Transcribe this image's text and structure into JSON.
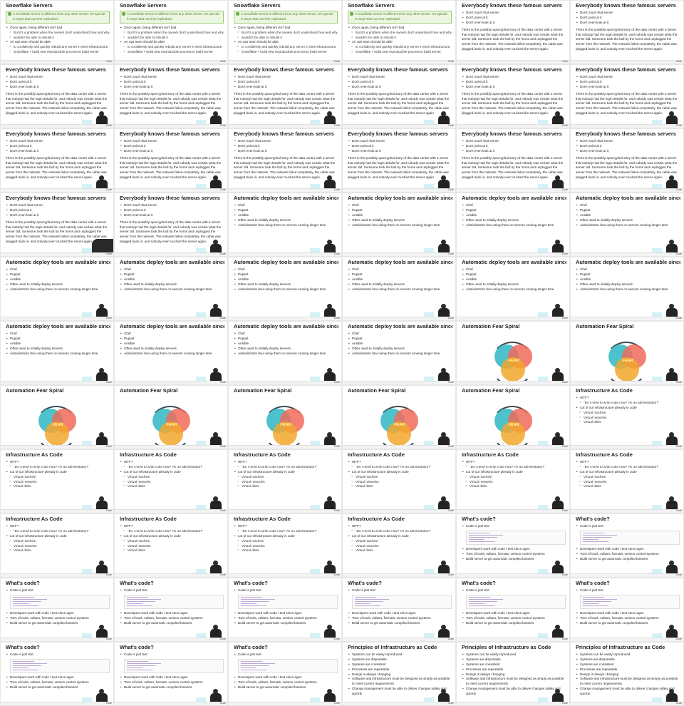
{
  "slides": {
    "snowflake": {
      "title": "Snowflake Servers",
      "note": "A snowflake server is different from any other server. It's special in ways that can't be replicated.",
      "bullets": [
        "Once again, being different isn't bad",
        "But it's a problem when the owners don't understand how and why",
        "wouldn't be able to rebuild it",
        "An ops team should be able",
        "to confidently and quickly rebuild any server in their infrastructure.",
        "Snowflake + build new reproducible process to build server"
      ]
    },
    "famous": {
      "title": "Everybody knows these famous servers",
      "bullets": [
        "Don't touch that server",
        "Don't point at it",
        "Don't even look at it"
      ],
      "para": "There is the possibly apocryphal story of the data center with a server that nobody had the login details for, and nobody was certain what the server did. Someone took the bull by the horns and unplugged the server from the network. The network failed completely, the cable was plugged back in, and nobody ever touched the server again."
    },
    "deploy": {
      "title": "Automatic deploy tools are available since ages",
      "bullets": [
        "Chef",
        "Puppet",
        "Ansible",
        "Often used to initially deploy servers",
        "Administrator fear using them on servers running longer time"
      ]
    },
    "fear": {
      "title": "Automation Fear Spiral",
      "label": "FEAR"
    },
    "iac": {
      "title": "Infrastructure As Code",
      "bullets": [
        "WTF?",
        "\"Do I need to write code now? I'm an administrator!\"",
        "Lot of our infrastructure already is code",
        "Virtual machine",
        "Virtual networks",
        "Virtual disks"
      ]
    },
    "code": {
      "title": "What's code?",
      "bullets": [
        "Code is just text",
        "Developers work with code / text since ages",
        "Tons of tools, editors, formats, version control systems",
        "Build server to get automatic compiled binaries"
      ]
    },
    "principles": {
      "title": "Principles of Infrastructure as Code",
      "bullets": [
        "Systems can be easily reproduced",
        "Systems are disposable",
        "Systems are consistent",
        "Processes are repeatable",
        "Design is always changing",
        "Software and infrastructure must be designed as simply as possible to meet current requirements",
        "Change management must be able to deliver changes safely and quickly"
      ]
    }
  },
  "footer_label": "Code",
  "colors": {
    "note_bg": "#eaf6df",
    "note_border": "#9ccc73",
    "venn_teal": "#2fb7c3",
    "venn_red": "#f06b5a",
    "venn_orange": "#f2a72c"
  },
  "icons": {
    "check": "check-circle-icon",
    "presenter": "presenter-video-icon"
  }
}
